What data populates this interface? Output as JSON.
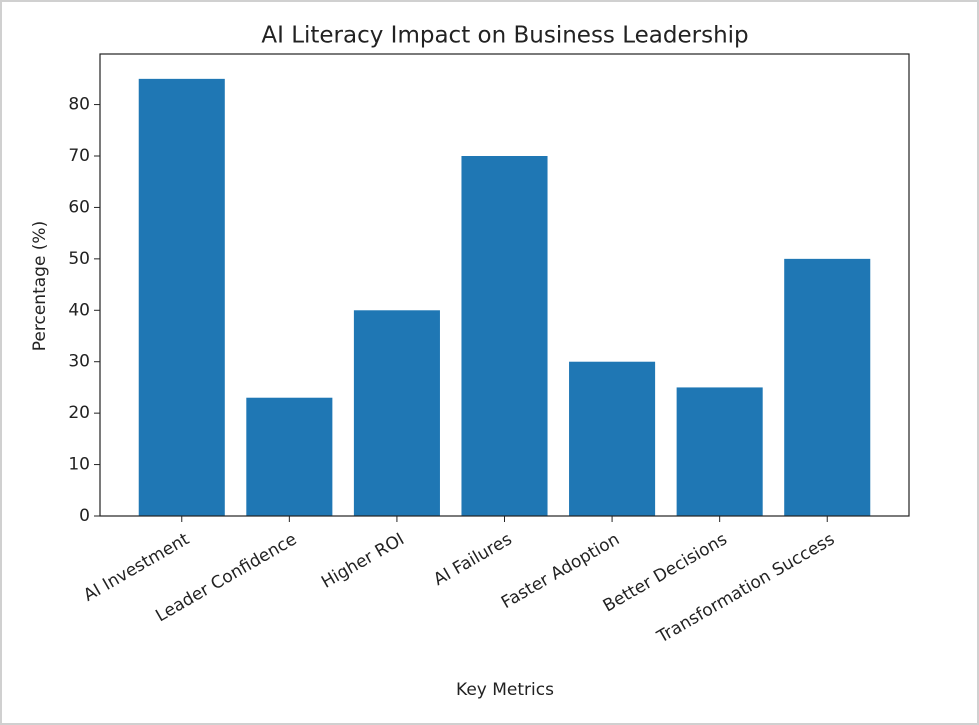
{
  "chart_data": {
    "type": "bar",
    "title": "AI Literacy Impact on Business Leadership",
    "x_label": "Key Metrics",
    "y_label": "Percentage (%)",
    "categories": [
      "AI Investment",
      "Leader Confidence",
      "Higher ROI",
      "AI Failures",
      "Faster Adoption",
      "Better Decisions",
      "Transformation Success"
    ],
    "values": [
      85,
      23,
      40,
      70,
      30,
      25,
      50
    ],
    "color": "#1f77b4",
    "ylim": [
      0,
      89.25
    ],
    "yticks": [
      0,
      10,
      20,
      30,
      40,
      50,
      60,
      70,
      80
    ],
    "grid": false
  }
}
